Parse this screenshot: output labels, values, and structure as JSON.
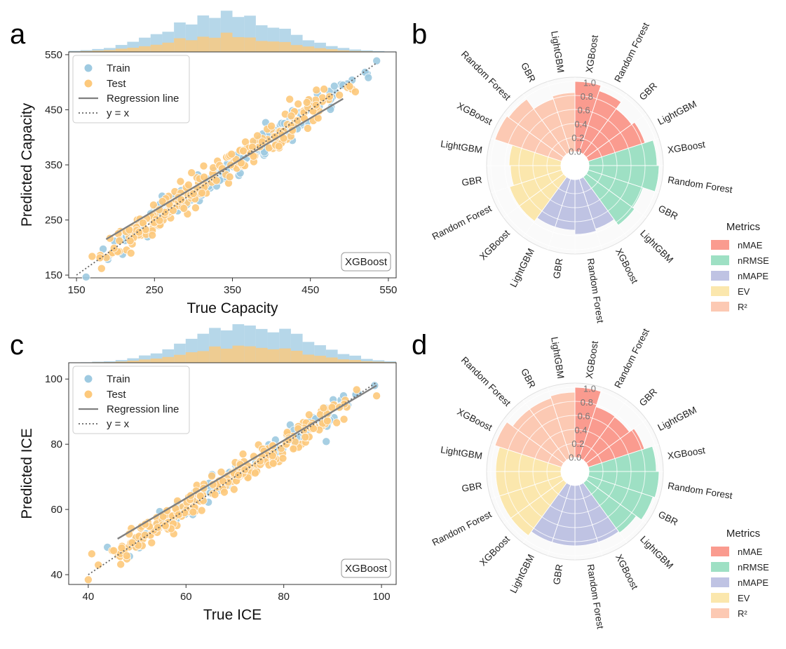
{
  "panels": {
    "a": "a",
    "b": "b",
    "c": "c",
    "d": "d"
  },
  "colors": {
    "train": "#9ecae1",
    "test": "#fdc97c",
    "regression": "#808080",
    "nMAE": "#fa9b8f",
    "nRMSE": "#9ee0c4",
    "nMAPE": "#bfc3e3",
    "EV": "#fbe7ad",
    "R2": "#fcc9b3"
  },
  "chart_data": [
    {
      "id": "a",
      "type": "scatter",
      "xlabel": "True Capacity",
      "ylabel": "Predicted Capacity",
      "xlim": [
        140,
        560
      ],
      "ylim": [
        145,
        555
      ],
      "xticks": [
        "150",
        "250",
        "350",
        "450",
        "550"
      ],
      "yticks": [
        "150",
        "250",
        "350",
        "450",
        "550"
      ],
      "model_badge": "XGBoost",
      "legend": [
        "Train",
        "Test",
        "Regression line",
        "y = x"
      ],
      "regression_line": [
        [
          188,
          215
        ],
        [
          492,
          470
        ]
      ],
      "identity_line": [
        [
          150,
          150
        ],
        [
          535,
          535
        ]
      ],
      "train_range": [
        155,
        535
      ],
      "test_range": [
        155,
        515
      ],
      "hist_center": 340
    },
    {
      "id": "c",
      "type": "scatter",
      "xlabel": "True ICE",
      "ylabel": "Predicted ICE",
      "xlim": [
        36,
        103
      ],
      "ylim": [
        37,
        105
      ],
      "xticks": [
        "40",
        "60",
        "80",
        "100"
      ],
      "yticks": [
        "40",
        "60",
        "80",
        "100"
      ],
      "model_badge": "XGBoost",
      "legend": [
        "Train",
        "Test",
        "Regression line",
        "y = x"
      ],
      "regression_line": [
        [
          46,
          51
        ],
        [
          99,
          98
        ]
      ],
      "identity_line": [
        [
          40,
          40
        ],
        [
          99,
          99
        ]
      ],
      "train_range": [
        40,
        99
      ],
      "test_range": [
        40,
        99
      ],
      "hist_center": 73
    },
    {
      "id": "b",
      "type": "bar",
      "subtype": "polar",
      "radial_ticks": [
        "0.0",
        "0.2",
        "0.4",
        "0.6",
        "0.8",
        "1.0"
      ],
      "models": [
        "XGBoost",
        "Random Forest",
        "GBR",
        "LightGBM"
      ],
      "legend_title": "Metrics",
      "metrics": [
        "nMAE",
        "nRMSE",
        "nMAPE",
        "EV",
        "R²"
      ],
      "values": {
        "nMAE": [
          1.0,
          0.92,
          0.8,
          0.85
        ],
        "nRMSE": [
          0.97,
          1.0,
          0.82,
          0.85
        ],
        "nMAPE": [
          0.75,
          0.78,
          0.72,
          0.72
        ],
        "EV": [
          0.78,
          0.78,
          0.72,
          0.74
        ],
        "R2": [
          1.0,
          0.97,
          0.8,
          0.84
        ]
      }
    },
    {
      "id": "d",
      "type": "bar",
      "subtype": "polar",
      "radial_ticks": [
        "0.0",
        "0.2",
        "0.4",
        "0.6",
        "0.8",
        "1.0"
      ],
      "models": [
        "XGBoost",
        "Random Forest",
        "GBR",
        "LightGBM"
      ],
      "legend_title": "Metrics",
      "metrics": [
        "nMAE",
        "nRMSE",
        "nMAPE",
        "EV",
        "R²"
      ],
      "values": {
        "nMAE": [
          1.0,
          0.77,
          0.76,
          0.84
        ],
        "nRMSE": [
          0.96,
          1.0,
          0.97,
          0.88
        ],
        "nMAPE": [
          0.86,
          0.86,
          0.86,
          0.86
        ],
        "EV": [
          0.93,
          0.93,
          0.93,
          0.93
        ],
        "R2": [
          1.0,
          0.9,
          0.9,
          0.93
        ]
      }
    }
  ]
}
